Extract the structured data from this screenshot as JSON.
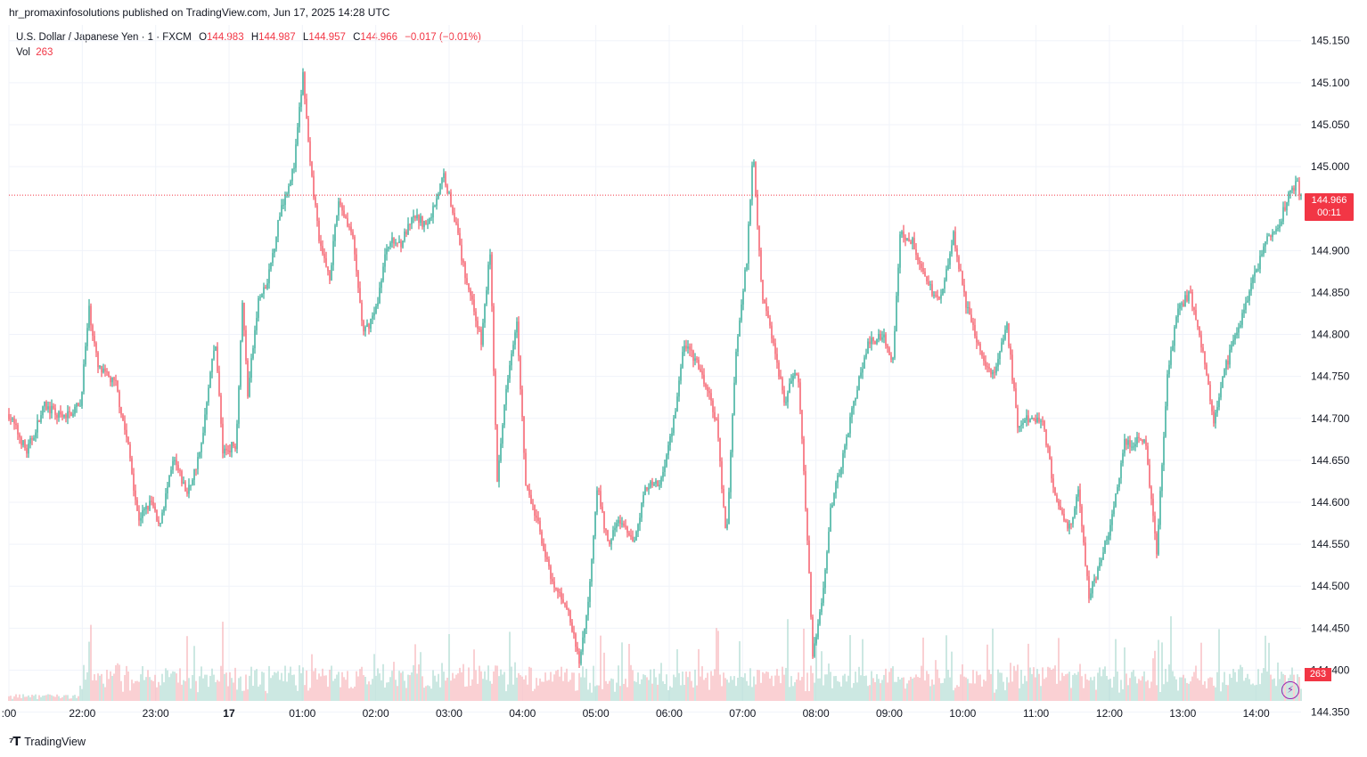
{
  "header": {
    "publisher_line": "hr_promaxinfosolutions published on TradingView.com, Jun 17, 2025 14:28 UTC"
  },
  "legend": {
    "symbol": "U.S. Dollar / Japanese Yen · 1 · FXCM",
    "o_label": "O",
    "o_value": "144.983",
    "h_label": "H",
    "h_value": "144.987",
    "l_label": "L",
    "l_value": "144.957",
    "c_label": "C",
    "c_value": "144.966",
    "change": "−0.017 (−0.01%)",
    "vol_label": "Vol",
    "vol_value": "263"
  },
  "price_tag": {
    "price": "144.966",
    "countdown": "00:11"
  },
  "volume_tag": "263",
  "footer": {
    "brand": "TradingView",
    "logo_icon": "tradingview-logo-icon"
  },
  "colors": {
    "up": "#089981",
    "down": "#f23645",
    "grid": "#f0f3fa",
    "text": "#131722"
  },
  "chart_data": {
    "type": "candlestick",
    "symbol": "USDJPY",
    "interval": "1 minute",
    "y_ticks": [
      "145.150",
      "145.100",
      "145.050",
      "145.000",
      "144.966",
      "144.900",
      "144.850",
      "144.800",
      "144.750",
      "144.700",
      "144.650",
      "144.600",
      "144.550",
      "144.500",
      "144.450",
      "144.400",
      "144.350"
    ],
    "x_ticks": [
      ":00",
      "22:00",
      "23:00",
      "17",
      "01:00",
      "02:00",
      "03:00",
      "04:00",
      "05:00",
      "06:00",
      "07:00",
      "08:00",
      "09:00",
      "10:00",
      "11:00",
      "12:00",
      "13:00",
      "14:00"
    ],
    "ylim": [
      144.357,
      145.172
    ],
    "last_price": 144.966,
    "path": [
      [
        0,
        144.705
      ],
      [
        20,
        144.66
      ],
      [
        40,
        144.715
      ],
      [
        60,
        144.7
      ],
      [
        80,
        144.715
      ],
      [
        90,
        144.83
      ],
      [
        100,
        144.76
      ],
      [
        120,
        144.74
      ],
      [
        135,
        144.66
      ],
      [
        145,
        144.58
      ],
      [
        160,
        144.6
      ],
      [
        168,
        144.57
      ],
      [
        185,
        144.65
      ],
      [
        200,
        144.61
      ],
      [
        215,
        144.66
      ],
      [
        225,
        144.75
      ],
      [
        232,
        144.79
      ],
      [
        240,
        144.66
      ],
      [
        255,
        144.67
      ],
      [
        262,
        144.84
      ],
      [
        268,
        144.73
      ],
      [
        280,
        144.84
      ],
      [
        290,
        144.86
      ],
      [
        305,
        144.95
      ],
      [
        320,
        145.0
      ],
      [
        330,
        145.11
      ],
      [
        338,
        145.0
      ],
      [
        350,
        144.9
      ],
      [
        360,
        144.87
      ],
      [
        370,
        144.96
      ],
      [
        385,
        144.92
      ],
      [
        398,
        144.8
      ],
      [
        412,
        144.83
      ],
      [
        425,
        144.91
      ],
      [
        440,
        144.91
      ],
      [
        455,
        144.94
      ],
      [
        470,
        144.93
      ],
      [
        488,
        144.99
      ],
      [
        500,
        144.94
      ],
      [
        510,
        144.88
      ],
      [
        520,
        144.84
      ],
      [
        530,
        144.79
      ],
      [
        540,
        144.9
      ],
      [
        548,
        144.62
      ],
      [
        558,
        144.74
      ],
      [
        570,
        144.82
      ],
      [
        580,
        144.62
      ],
      [
        595,
        144.57
      ],
      [
        610,
        144.5
      ],
      [
        625,
        144.48
      ],
      [
        640,
        144.41
      ],
      [
        650,
        144.48
      ],
      [
        660,
        144.62
      ],
      [
        672,
        144.55
      ],
      [
        685,
        144.58
      ],
      [
        700,
        144.55
      ],
      [
        715,
        144.62
      ],
      [
        730,
        144.62
      ],
      [
        745,
        144.69
      ],
      [
        758,
        144.79
      ],
      [
        770,
        144.77
      ],
      [
        785,
        144.73
      ],
      [
        795,
        144.69
      ],
      [
        805,
        144.55
      ],
      [
        815,
        144.77
      ],
      [
        828,
        144.89
      ],
      [
        835,
        145.02
      ],
      [
        845,
        144.85
      ],
      [
        860,
        144.78
      ],
      [
        870,
        144.72
      ],
      [
        885,
        144.76
      ],
      [
        895,
        144.58
      ],
      [
        902,
        144.42
      ],
      [
        912,
        144.48
      ],
      [
        922,
        144.59
      ],
      [
        935,
        144.65
      ],
      [
        950,
        144.73
      ],
      [
        965,
        144.79
      ],
      [
        980,
        144.8
      ],
      [
        992,
        144.77
      ],
      [
        1000,
        144.92
      ],
      [
        1015,
        144.91
      ],
      [
        1030,
        144.86
      ],
      [
        1045,
        144.84
      ],
      [
        1060,
        144.92
      ],
      [
        1075,
        144.83
      ],
      [
        1090,
        144.78
      ],
      [
        1105,
        144.75
      ],
      [
        1120,
        144.81
      ],
      [
        1132,
        144.69
      ],
      [
        1145,
        144.7
      ],
      [
        1160,
        144.7
      ],
      [
        1175,
        144.6
      ],
      [
        1190,
        144.57
      ],
      [
        1200,
        144.61
      ],
      [
        1212,
        144.49
      ],
      [
        1225,
        144.53
      ],
      [
        1238,
        144.58
      ],
      [
        1252,
        144.67
      ],
      [
        1262,
        144.67
      ],
      [
        1275,
        144.68
      ],
      [
        1283,
        144.59
      ],
      [
        1288,
        144.54
      ],
      [
        1300,
        144.75
      ],
      [
        1312,
        144.83
      ],
      [
        1325,
        144.85
      ],
      [
        1340,
        144.78
      ],
      [
        1352,
        144.7
      ],
      [
        1365,
        144.76
      ],
      [
        1380,
        144.81
      ],
      [
        1395,
        144.86
      ],
      [
        1410,
        144.91
      ],
      [
        1425,
        144.93
      ],
      [
        1437,
        144.97
      ],
      [
        1445,
        144.98
      ],
      [
        1450,
        144.966
      ]
    ]
  }
}
